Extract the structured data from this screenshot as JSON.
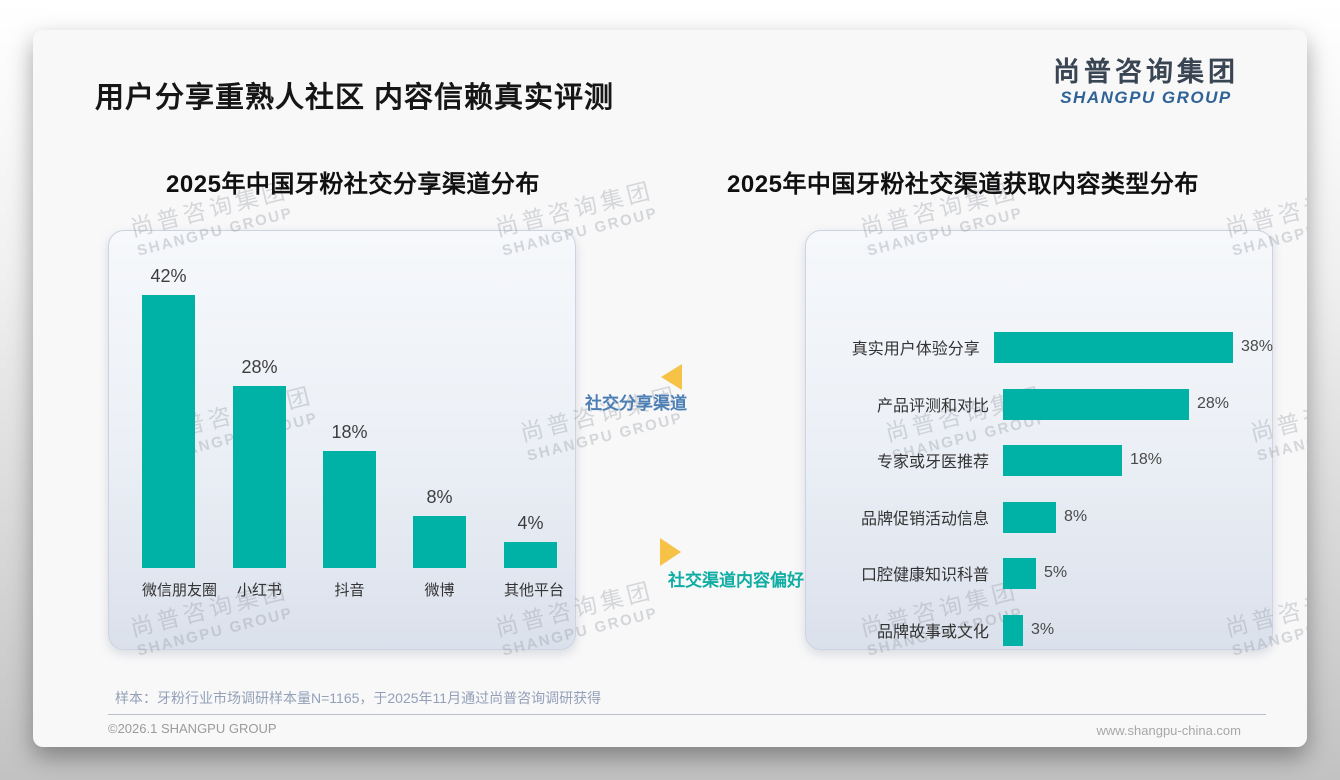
{
  "page_title": "用户分享重熟人社区 内容信赖真实评测",
  "logo": {
    "cn": "尚普咨询集团",
    "en": "SHANGPU GROUP"
  },
  "watermark": {
    "line1": "尚普咨询集团",
    "line2": "SHANGPU GROUP"
  },
  "annotations": {
    "share_channel_label": "社交分享渠道",
    "content_preference_label": "社交渠道内容偏好",
    "left_arrow_icon": "triangle-left",
    "right_arrow_icon": "triangle-right"
  },
  "colors": {
    "bar_teal": "#00b1a6",
    "triangle_yellow": "#f6c346",
    "annotation_blue": "#4d7fb5",
    "annotation_teal": "#0fada3"
  },
  "chart_data": [
    {
      "type": "bar",
      "orientation": "vertical",
      "title": "2025年中国牙粉社交分享渠道分布",
      "categories": [
        "微信朋友圈",
        "小红书",
        "抖音",
        "微博",
        "其他平台"
      ],
      "values": [
        42,
        28,
        18,
        8,
        4
      ],
      "unit": "%",
      "ylim": [
        0,
        45
      ],
      "grid": false,
      "legend": false
    },
    {
      "type": "bar",
      "orientation": "horizontal",
      "title": "2025年中国牙粉社交渠道获取内容类型分布",
      "categories": [
        "真实用户体验分享",
        "产品评测和对比",
        "专家或牙医推荐",
        "品牌促销活动信息",
        "口腔健康知识科普",
        "品牌故事或文化"
      ],
      "values": [
        38,
        28,
        18,
        8,
        5,
        3
      ],
      "unit": "%",
      "xlim": [
        0,
        40
      ],
      "grid": false,
      "legend": false
    }
  ],
  "footnote": "样本：牙粉行业市场调研样本量N=1165，于2025年11月通过尚普咨询调研获得",
  "footer": {
    "left": "©2026.1 SHANGPU GROUP",
    "right": "www.shangpu-china.com"
  }
}
